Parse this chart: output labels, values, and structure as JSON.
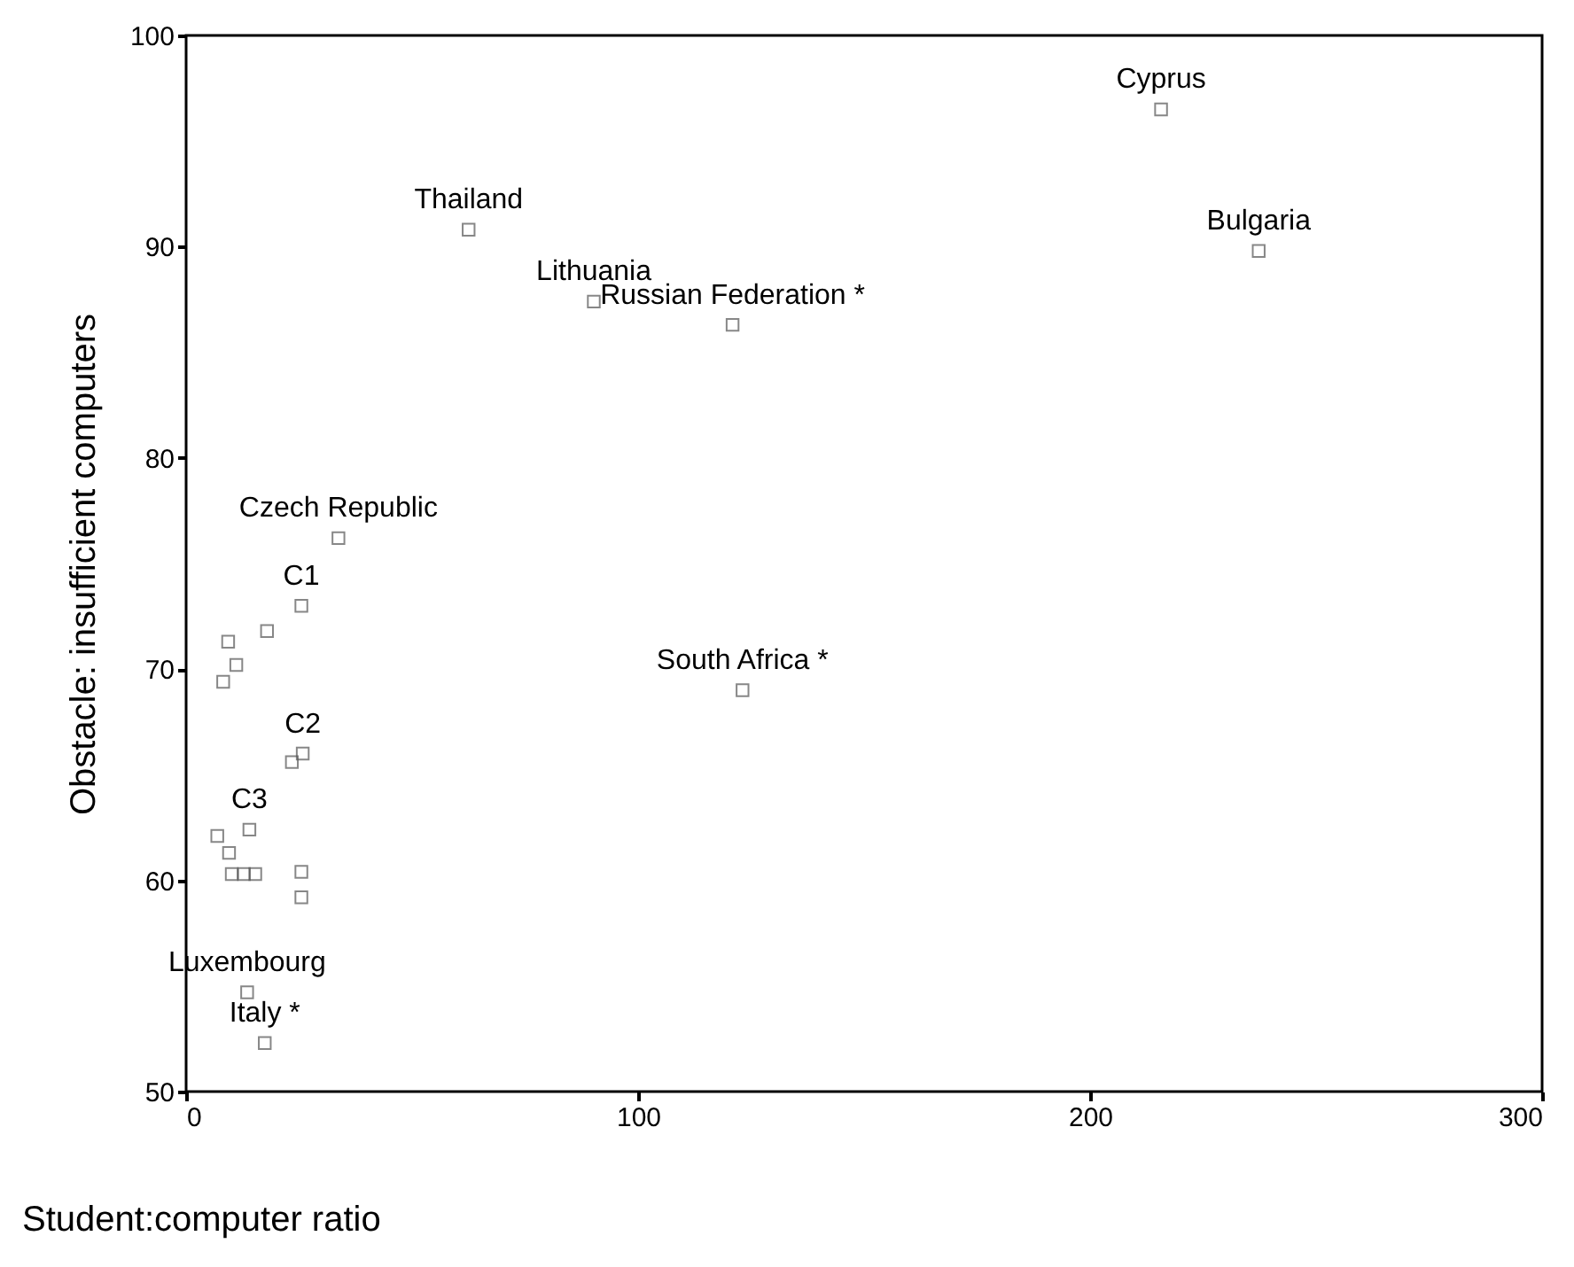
{
  "chart_data": {
    "type": "scatter",
    "xlabel": "Student:computer ratio",
    "ylabel": "Obstacle: insufficient computers",
    "x": [
      33.7,
      25.5,
      17.9,
      9.3,
      11.1,
      8.2,
      25.8,
      23.4,
      14.0,
      6.9,
      9.5,
      10.1,
      12.8,
      15.3,
      25.5,
      25.5,
      13.5,
      17.4,
      62.5,
      90.2,
      120.9,
      123.1,
      215.7,
      237.3
    ],
    "series": [
      {
        "color": "#555555",
        "values": [
          76.2,
          73.0,
          71.8,
          71.3,
          70.2,
          69.4,
          66.0,
          65.6,
          62.4,
          62.1,
          61.3,
          60.3,
          60.3,
          60.3,
          60.4,
          59.2,
          54.7,
          52.3,
          90.8,
          87.4,
          86.3,
          69.0,
          96.5,
          89.8
        ]
      }
    ],
    "marker": "square",
    "grid": false,
    "xlim": [
      0,
      300
    ],
    "xticks": [
      0,
      100,
      200,
      300
    ],
    "ylim": [
      50,
      100
    ],
    "yticks": [
      50,
      60,
      70,
      80,
      90,
      100
    ],
    "annotations": [
      {
        "text": "Czech Republic",
        "x": 33.7,
        "y": 76.2
      },
      {
        "text": "C1",
        "x": 25.5,
        "y": 73.0
      },
      {
        "text": "C2",
        "x": 25.8,
        "y": 66.0
      },
      {
        "text": "C3",
        "x": 14.0,
        "y": 62.4
      },
      {
        "text": "Luxembourg",
        "x": 13.5,
        "y": 54.7
      },
      {
        "text": "Italy *",
        "x": 17.4,
        "y": 52.3
      },
      {
        "text": "Thailand",
        "x": 62.5,
        "y": 90.8
      },
      {
        "text": "Lithuania",
        "x": 90.2,
        "y": 87.4
      },
      {
        "text": "Russian Federation *",
        "x": 120.9,
        "y": 86.3
      },
      {
        "text": "South Africa *",
        "x": 123.1,
        "y": 69.0
      },
      {
        "text": "Cyprus",
        "x": 215.7,
        "y": 96.5
      },
      {
        "text": "Bulgaria",
        "x": 237.3,
        "y": 89.8
      }
    ]
  }
}
